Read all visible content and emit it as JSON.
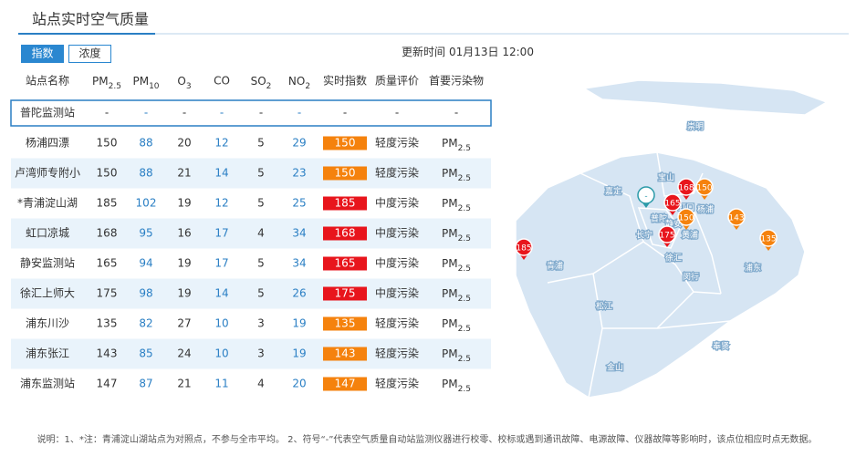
{
  "header": {
    "title": "站点实时空气质量",
    "tabs": [
      "指数",
      "浓度"
    ],
    "update_label": "更新时间",
    "update_time": "01月13日 12:00"
  },
  "table": {
    "columns": [
      "站点名称",
      {
        "base": "PM",
        "sub": "2.5"
      },
      {
        "base": "PM",
        "sub": "10"
      },
      {
        "base": "O",
        "sub": "3"
      },
      "CO",
      {
        "base": "SO",
        "sub": "2"
      },
      {
        "base": "NO",
        "sub": "2"
      },
      "实时指数",
      "质量评价",
      "首要污染物"
    ],
    "rows": [
      {
        "station": "普陀监测站",
        "values": [
          "-",
          "-",
          "-",
          "-",
          "-",
          "-"
        ],
        "aqi": "-",
        "quality": "-",
        "primary": "-"
      },
      {
        "station": "杨浦四漂",
        "values": [
          150,
          88,
          20,
          12,
          5,
          29
        ],
        "aqi": 150,
        "quality": "轻度污染",
        "primary": {
          "base": "PM",
          "sub": "2.5"
        },
        "color": "#f5820d"
      },
      {
        "station": "卢湾师专附小",
        "values": [
          150,
          88,
          21,
          14,
          5,
          23
        ],
        "aqi": 150,
        "quality": "轻度污染",
        "primary": {
          "base": "PM",
          "sub": "2.5"
        },
        "color": "#f5820d"
      },
      {
        "station": "*青浦淀山湖",
        "values": [
          185,
          102,
          19,
          12,
          5,
          25
        ],
        "aqi": 185,
        "quality": "中度污染",
        "primary": {
          "base": "PM",
          "sub": "2.5"
        },
        "color": "#e8151c"
      },
      {
        "station": "虹口凉城",
        "values": [
          168,
          95,
          16,
          17,
          4,
          34
        ],
        "aqi": 168,
        "quality": "中度污染",
        "primary": {
          "base": "PM",
          "sub": "2.5"
        },
        "color": "#e8151c"
      },
      {
        "station": "静安监测站",
        "values": [
          165,
          94,
          19,
          17,
          5,
          34
        ],
        "aqi": 165,
        "quality": "中度污染",
        "primary": {
          "base": "PM",
          "sub": "2.5"
        },
        "color": "#e8151c"
      },
      {
        "station": "徐汇上师大",
        "values": [
          175,
          98,
          19,
          14,
          5,
          26
        ],
        "aqi": 175,
        "quality": "中度污染",
        "primary": {
          "base": "PM",
          "sub": "2.5"
        },
        "color": "#e8151c"
      },
      {
        "station": "浦东川沙",
        "values": [
          135,
          82,
          27,
          10,
          3,
          19
        ],
        "aqi": 135,
        "quality": "轻度污染",
        "primary": {
          "base": "PM",
          "sub": "2.5"
        },
        "color": "#f5820d"
      },
      {
        "station": "浦东张江",
        "values": [
          143,
          85,
          24,
          10,
          3,
          19
        ],
        "aqi": 143,
        "quality": "轻度污染",
        "primary": {
          "base": "PM",
          "sub": "2.5"
        },
        "color": "#f5820d"
      },
      {
        "station": "浦东监测站",
        "values": [
          147,
          87,
          21,
          11,
          4,
          20
        ],
        "aqi": 147,
        "quality": "轻度污染",
        "primary": {
          "base": "PM",
          "sub": "2.5"
        },
        "color": "#f5820d"
      }
    ]
  },
  "map": {
    "districts": [
      "崇明",
      "宝山",
      "嘉定",
      "虹口",
      "杨浦",
      "普陀",
      "长宁",
      "静安",
      "黄浦",
      "徐汇",
      "青浦",
      "闵行",
      "浦东",
      "松江",
      "奉贤",
      "金山"
    ],
    "markers": [
      {
        "label": "-",
        "color": "#ffffff"
      },
      {
        "label": "168",
        "color": "#e8151c"
      },
      {
        "label": "150",
        "color": "#f5820d"
      },
      {
        "label": "165",
        "color": "#e8151c"
      },
      {
        "label": "150",
        "color": "#f5820d"
      },
      {
        "label": "175",
        "color": "#e8151c"
      },
      {
        "label": "143",
        "color": "#f5820d"
      },
      {
        "label": "135",
        "color": "#f5820d"
      },
      {
        "label": "185",
        "color": "#e8151c"
      }
    ]
  },
  "footer": {
    "note": "说明：1、*注：青浦淀山湖站点为对照点，不参与全市平均。 2、符号“-”代表空气质量自动站监测仪器进行校零、校标或遇到通讯故障、电源故障、仪器故障等影响时，该点位相应时点无数据。"
  }
}
